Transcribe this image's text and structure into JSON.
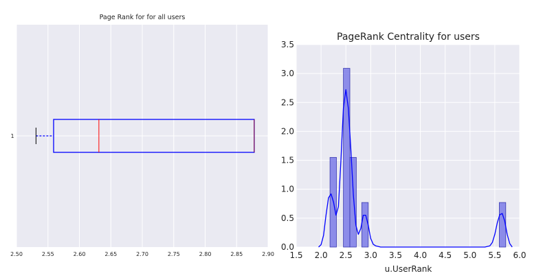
{
  "chart_data": [
    {
      "type": "boxplot",
      "title": "Page Rank for for all users",
      "orientation": "horizontal",
      "xlim": [
        2.5,
        2.9
      ],
      "xticks": [
        "2.50",
        "2.55",
        "2.60",
        "2.65",
        "2.70",
        "2.75",
        "2.80",
        "2.85",
        "2.90"
      ],
      "yticks": [
        "1"
      ],
      "box": {
        "whisker_low": 2.531,
        "q1": 2.559,
        "median": 2.631,
        "q3": 2.878,
        "whisker_high": 2.878
      },
      "grid": true,
      "colors": {
        "box": "#0000ff",
        "median": "#ff0000",
        "whisker_cap": "#000000",
        "background": "#eaeaf2"
      }
    },
    {
      "type": "histogram",
      "title": "PageRank Centrality for users",
      "xlabel": "u.UserRank",
      "ylabel": "",
      "xlim": [
        1.5,
        6.0
      ],
      "ylim": [
        0,
        3.5
      ],
      "xticks": [
        "1.5",
        "2.0",
        "2.5",
        "3.0",
        "3.5",
        "4.0",
        "4.5",
        "5.0",
        "5.5",
        "6.0"
      ],
      "yticks": [
        "0.0",
        "0.5",
        "1.0",
        "1.5",
        "2.0",
        "2.5",
        "3.0",
        "3.5"
      ],
      "bars": [
        {
          "x0": 2.18,
          "x1": 2.31,
          "value": 1.55
        },
        {
          "x0": 2.45,
          "x1": 2.58,
          "value": 3.09
        },
        {
          "x0": 2.58,
          "x1": 2.71,
          "value": 1.55
        },
        {
          "x0": 2.82,
          "x1": 2.95,
          "value": 0.77
        },
        {
          "x0": 5.59,
          "x1": 5.72,
          "value": 0.77
        }
      ],
      "kde": {
        "x": [
          1.95,
          2.0,
          2.05,
          2.1,
          2.15,
          2.2,
          2.25,
          2.3,
          2.35,
          2.4,
          2.45,
          2.5,
          2.55,
          2.6,
          2.65,
          2.7,
          2.75,
          2.8,
          2.85,
          2.9,
          2.95,
          3.0,
          3.05,
          3.1,
          3.2,
          3.5,
          4.5,
          5.3,
          5.4,
          5.45,
          5.5,
          5.55,
          5.6,
          5.65,
          5.7,
          5.75,
          5.8,
          5.85
        ],
        "y": [
          0.0,
          0.04,
          0.2,
          0.55,
          0.85,
          0.92,
          0.78,
          0.55,
          0.7,
          1.5,
          2.4,
          2.72,
          2.4,
          1.7,
          0.9,
          0.38,
          0.22,
          0.32,
          0.55,
          0.55,
          0.38,
          0.15,
          0.05,
          0.02,
          0.0,
          0.0,
          0.0,
          0.0,
          0.02,
          0.08,
          0.22,
          0.42,
          0.56,
          0.58,
          0.45,
          0.22,
          0.06,
          0.0
        ]
      },
      "grid": true,
      "colors": {
        "bar": "#7b7be8",
        "bar_edge": "#3a3ab0",
        "line": "#0000ff",
        "background": "#eaeaf2"
      }
    }
  ]
}
